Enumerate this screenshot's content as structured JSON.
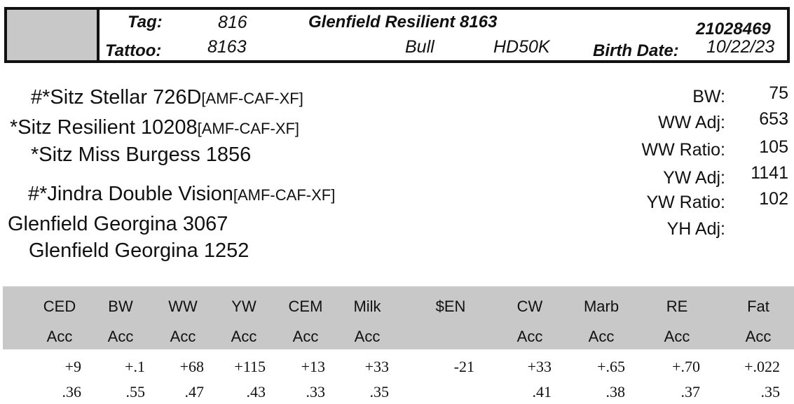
{
  "header": {
    "tag_label": "Tag:",
    "tag_value": "816",
    "tattoo_label": "Tattoo:",
    "tattoo_value": "8163",
    "animal_name": "Glenfield Resilient 8163",
    "sex": "Bull",
    "genetic_test": "HD50K",
    "registration_number": "21028469",
    "birth_date_label": "Birth Date:",
    "birth_date_value": "10/22/23"
  },
  "pedigree": [
    {
      "name": "#*Sitz Stellar 726D",
      "tag": "[AMF-CAF-XF]"
    },
    {
      "name": "*Sitz Resilient 10208",
      "tag": "[AMF-CAF-XF]"
    },
    {
      "name": "*Sitz Miss Burgess 1856",
      "tag": ""
    },
    {
      "name": "#*Jindra Double Vision",
      "tag": "[AMF-CAF-XF]"
    },
    {
      "name": "Glenfield Georgina 3067",
      "tag": ""
    },
    {
      "name": "Glenfield Georgina 1252",
      "tag": ""
    }
  ],
  "stats": [
    {
      "label": "BW:",
      "value": "75"
    },
    {
      "label": "WW Adj:",
      "value": "653"
    },
    {
      "label": "WW Ratio:",
      "value": "105"
    },
    {
      "label": "YW Adj:",
      "value": "1141"
    },
    {
      "label": "YW Ratio:",
      "value": "102"
    },
    {
      "label": "YH Adj:",
      "value": ""
    }
  ],
  "epd": {
    "columns": [
      {
        "trait": "CED",
        "acc_label": "Acc",
        "value": "+9",
        "acc": ".36"
      },
      {
        "trait": "BW",
        "acc_label": "Acc",
        "value": "+.1",
        "acc": ".55"
      },
      {
        "trait": "WW",
        "acc_label": "Acc",
        "value": "+68",
        "acc": ".47"
      },
      {
        "trait": "YW",
        "acc_label": "Acc",
        "value": "+115",
        "acc": ".43"
      },
      {
        "trait": "CEM",
        "acc_label": "Acc",
        "value": "+13",
        "acc": ".33"
      },
      {
        "trait": "Milk",
        "acc_label": "Acc",
        "value": "+33",
        "acc": ".35"
      },
      {
        "trait": "$EN",
        "acc_label": "",
        "value": "-21",
        "acc": ""
      },
      {
        "trait": "CW",
        "acc_label": "Acc",
        "value": "+33",
        "acc": ".41"
      },
      {
        "trait": "Marb",
        "acc_label": "Acc",
        "value": "+.65",
        "acc": ".38"
      },
      {
        "trait": "RE",
        "acc_label": "Acc",
        "value": "+.70",
        "acc": ".37"
      },
      {
        "trait": "Fat",
        "acc_label": "Acc",
        "value": "+.022",
        "acc": ".35"
      }
    ]
  }
}
